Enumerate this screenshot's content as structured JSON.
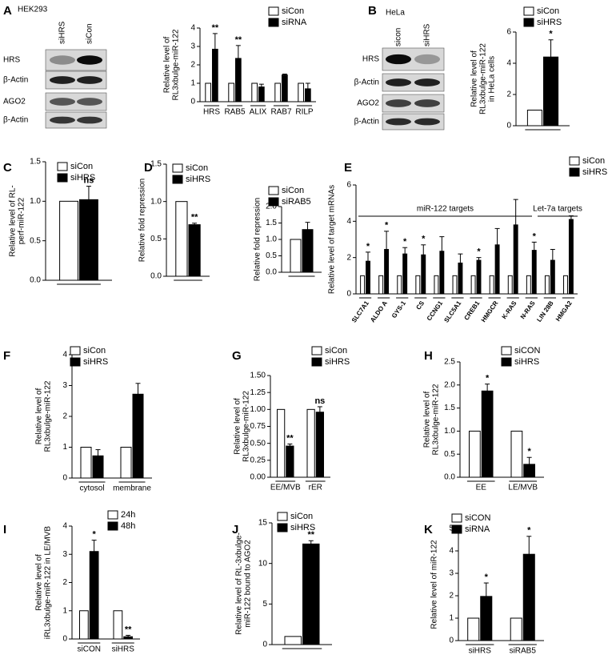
{
  "panel_labels": [
    "A",
    "B",
    "C",
    "D",
    "E",
    "F",
    "G",
    "H",
    "I",
    "J",
    "K"
  ],
  "blots": [
    {
      "cell_line": "HEK293",
      "lanes": [
        "siHRS",
        "siCon"
      ],
      "rows": [
        "HRS",
        "β-Actin",
        "AGO2",
        "β-Actin"
      ]
    },
    {
      "cell_line": "HeLa",
      "lanes": [
        "sicon",
        "siHRS"
      ],
      "rows": [
        "HRS",
        "β-Actin",
        "AGO2",
        "β-Actin"
      ]
    }
  ],
  "chart_data": [
    {
      "type": "bar",
      "y_label": [
        "Relative level of",
        "RL3xbulge-miR-122"
      ],
      "categories": [
        "HRS",
        "RAB5",
        "ALIX",
        "RAB7",
        "RILP"
      ],
      "series": [
        {
          "name": "siCon",
          "color": "#ffffff",
          "values": [
            1,
            1,
            1,
            1,
            1
          ]
        },
        {
          "name": "siRNA",
          "color": "#000000",
          "values": [
            2.85,
            2.35,
            0.8,
            1.45,
            0.7
          ],
          "errors": [
            0.85,
            0.7,
            0.15,
            0.05,
            0.3
          ],
          "labels": [
            "**",
            "**",
            null,
            null,
            null
          ]
        }
      ],
      "ylim": [
        0,
        4
      ],
      "yticks": [
        0,
        1,
        2,
        3,
        4
      ]
    },
    {
      "type": "bar",
      "y_label": [
        "Relative level of",
        "RL3xbulge-miR-122",
        "in HeLa cells"
      ],
      "categories": [
        null
      ],
      "series": [
        {
          "name": "siCon",
          "color": "#ffffff",
          "values": [
            1
          ]
        },
        {
          "name": "siHRS",
          "color": "#000000",
          "values": [
            4.4
          ],
          "errors": [
            1.1
          ],
          "labels": [
            "*"
          ]
        }
      ],
      "ylim": [
        0,
        6
      ],
      "yticks": [
        0,
        2,
        4,
        6
      ]
    },
    {
      "type": "bar",
      "y_label": [
        "Relative level of  RL-",
        "perf-miR-122"
      ],
      "categories": [
        null
      ],
      "series": [
        {
          "name": "siCon",
          "color": "#ffffff",
          "values": [
            1
          ]
        },
        {
          "name": "siHRS",
          "color": "#000000",
          "values": [
            1.02
          ],
          "errors": [
            0.17
          ],
          "labels": [
            "ns"
          ]
        }
      ],
      "ylim": [
        0,
        1.5
      ],
      "yticks": [
        {
          "value": 0,
          "label": "0.0"
        },
        0.5,
        {
          "value": 1,
          "label": "1.0"
        },
        1.5
      ]
    },
    {
      "type": "bar",
      "y_label": [
        "Relative fold repression"
      ],
      "categories": [
        null
      ],
      "series": [
        {
          "name": "siCon",
          "color": "#ffffff",
          "values": [
            1
          ]
        },
        {
          "name": "siHRS",
          "color": "#000000",
          "values": [
            0.69
          ],
          "errors": [
            0.02
          ],
          "labels": [
            "**"
          ]
        }
      ],
      "ylim": [
        0,
        1.5
      ],
      "yticks": [
        {
          "value": 0,
          "label": "0.0"
        },
        0.5,
        {
          "value": 1,
          "label": "1.0"
        },
        1.5
      ]
    },
    {
      "type": "bar",
      "y_label": [
        "Relative fold repression"
      ],
      "categories": [
        null
      ],
      "series": [
        {
          "name": "siCon",
          "color": "#ffffff",
          "values": [
            1
          ]
        },
        {
          "name": "siRAB5",
          "color": "#000000",
          "values": [
            1.3
          ],
          "errors": [
            0.22
          ]
        }
      ],
      "ylim": [
        0,
        2
      ],
      "yticks": [
        {
          "value": 0,
          "label": "0.0"
        },
        0.5,
        {
          "value": 1,
          "label": "1.0"
        },
        1.5,
        {
          "value": 2,
          "label": "2.0"
        }
      ]
    },
    {
      "type": "bar",
      "y_label": [
        "Relative level of target mRNAs"
      ],
      "group_labels": [
        "miR-122 targets",
        "Let-7a targets"
      ],
      "categories": [
        "SLC7A1",
        "ALDO A",
        "GYS-1",
        "CS",
        "CCNG1",
        "SLC5A1",
        "CREB1",
        "HMGCR",
        "K-RAS",
        "N-RAS",
        "LIN 28B",
        "HMGA2"
      ],
      "series": [
        {
          "name": "siCon",
          "color": "#ffffff",
          "values": [
            1,
            1,
            1,
            1,
            1,
            1,
            1,
            1,
            1,
            1,
            1,
            1
          ]
        },
        {
          "name": "siHRS",
          "color": "#000000",
          "values": [
            1.8,
            2.45,
            2.2,
            2.15,
            2.35,
            1.7,
            1.85,
            2.7,
            3.8,
            2.4,
            1.85,
            4.1
          ],
          "errors": [
            0.5,
            1.0,
            0.35,
            0.55,
            0.8,
            0.5,
            0.15,
            0.9,
            1.4,
            0.45,
            0.6,
            0.2
          ],
          "labels": [
            "*",
            "*",
            "*",
            "*",
            null,
            null,
            "*",
            null,
            null,
            "*",
            null,
            null
          ]
        }
      ],
      "ylim": [
        0,
        6
      ],
      "yticks": [
        0,
        2,
        4,
        6
      ]
    },
    {
      "type": "bar",
      "y_label": [
        "Relative level of",
        "RL3xbulge-miR-122"
      ],
      "categories": [
        "cytosol",
        "membrane"
      ],
      "series": [
        {
          "name": "siCon",
          "color": "#ffffff",
          "values": [
            1,
            1
          ]
        },
        {
          "name": "siHRS",
          "color": "#000000",
          "values": [
            0.72,
            2.72
          ],
          "errors": [
            0.2,
            0.35
          ]
        }
      ],
      "ylim": [
        0,
        4
      ],
      "yticks": [
        0,
        1,
        2,
        3,
        4
      ]
    },
    {
      "type": "bar",
      "y_label": [
        "Relative level of",
        "RL3xbulge-miR-122"
      ],
      "categories": [
        "EE/MVB",
        "rER"
      ],
      "series": [
        {
          "name": "siCon",
          "color": "#ffffff",
          "values": [
            1,
            1
          ]
        },
        {
          "name": "siHRS",
          "color": "#000000",
          "values": [
            0.46,
            0.96
          ],
          "errors": [
            0.03,
            0.08
          ],
          "labels": [
            "**",
            "ns"
          ]
        }
      ],
      "ylim": [
        0,
        1.5
      ],
      "yticks": [
        {
          "value": 0,
          "label": "0.00"
        },
        0.25,
        {
          "value": 0.5,
          "label": "0.50"
        },
        0.75,
        {
          "value": 1,
          "label": "1.00"
        },
        1.25,
        {
          "value": 1.5,
          "label": "1.50"
        }
      ]
    },
    {
      "type": "bar",
      "y_label": [
        "Relative level of",
        "RL3xbulge-miR-122"
      ],
      "categories": [
        "EE",
        "LE/MVB"
      ],
      "series": [
        {
          "name": "siCON",
          "color": "#ffffff",
          "values": [
            1,
            1
          ]
        },
        {
          "name": "siHRS",
          "color": "#000000",
          "values": [
            1.87,
            0.28
          ],
          "errors": [
            0.15,
            0.15
          ],
          "labels": [
            "*",
            "*"
          ]
        }
      ],
      "ylim": [
        0,
        2.5
      ],
      "yticks": [
        {
          "value": 0,
          "label": "0.0"
        },
        0.5,
        {
          "value": 1,
          "label": "1.0"
        },
        1.5,
        {
          "value": 2,
          "label": "2.0"
        },
        2.5
      ]
    },
    {
      "type": "bar",
      "y_label": [
        "Relative level of",
        "iRL3xbulge-miR-122 in LE/MVB"
      ],
      "categories": [
        "siCON",
        "siHRS"
      ],
      "series": [
        {
          "name": "24h",
          "color": "#ffffff",
          "values": [
            1,
            1
          ]
        },
        {
          "name": "48h",
          "color": "#000000",
          "values": [
            3.1,
            0.08
          ],
          "errors": [
            0.4,
            0.05
          ],
          "labels": [
            "*",
            "**"
          ]
        }
      ],
      "ylim": [
        0,
        4
      ],
      "yticks": [
        0,
        1,
        2,
        3,
        4
      ]
    },
    {
      "type": "bar",
      "y_label": [
        "Relative level  of RL-3xbulge-",
        "miR-122  bound to AGO2"
      ],
      "categories": [
        null
      ],
      "series": [
        {
          "name": "siCon",
          "color": "#ffffff",
          "values": [
            1
          ]
        },
        {
          "name": "siHRS",
          "color": "#000000",
          "values": [
            12.4
          ],
          "errors": [
            0.4
          ],
          "labels": [
            "**"
          ]
        }
      ],
      "ylim": [
        0,
        15
      ],
      "yticks": [
        0,
        5,
        10,
        15
      ]
    },
    {
      "type": "bar",
      "y_label": [
        "Relative level of miR-122"
      ],
      "categories": [
        "siHRS",
        "siRAB5"
      ],
      "series": [
        {
          "name": "siCON",
          "color": "#ffffff",
          "values": [
            1,
            1
          ]
        },
        {
          "name": "siRNA",
          "color": "#000000",
          "values": [
            1.97,
            3.85
          ],
          "errors": [
            0.6,
            0.8
          ],
          "labels": [
            "*",
            "*"
          ]
        }
      ],
      "ylim": [
        0,
        5
      ],
      "yticks": [
        0,
        1,
        2,
        3,
        4,
        5
      ]
    }
  ]
}
